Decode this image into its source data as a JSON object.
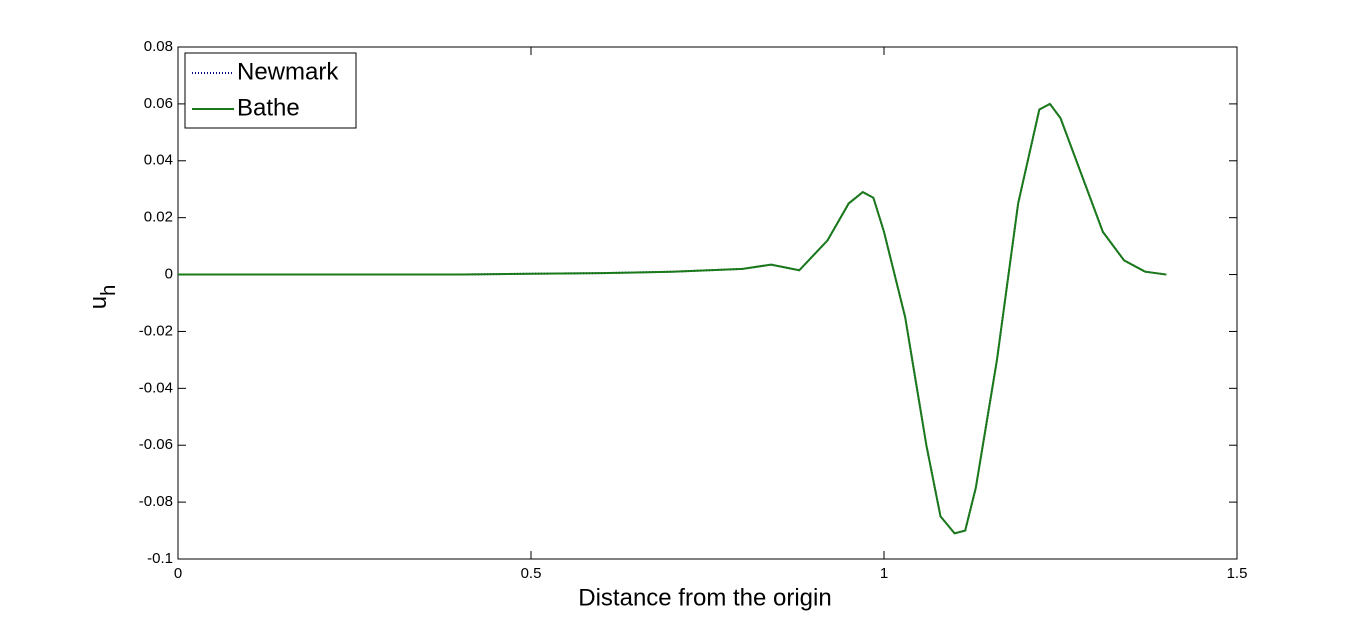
{
  "chart_data": {
    "type": "line",
    "xlabel": "Distance from the origin",
    "ylabel": "u",
    "ylabel_sub": "h",
    "x": [
      0,
      0.1,
      0.2,
      0.3,
      0.4,
      0.5,
      0.6,
      0.7,
      0.8,
      0.84,
      0.88,
      0.92,
      0.95,
      0.97,
      0.985,
      1.0,
      1.03,
      1.06,
      1.08,
      1.1,
      1.115,
      1.13,
      1.16,
      1.19,
      1.22,
      1.235,
      1.25,
      1.28,
      1.31,
      1.34,
      1.37,
      1.4
    ],
    "series": [
      {
        "name": "Newmark",
        "color": "#00008b",
        "dash": "dotted",
        "values": [
          0,
          0,
          0,
          0,
          0,
          0.0003,
          0.0005,
          0.001,
          0.002,
          0.0035,
          0.0015,
          0.012,
          0.025,
          0.029,
          0.027,
          0.015,
          -0.015,
          -0.06,
          -0.085,
          -0.091,
          -0.09,
          -0.075,
          -0.03,
          0.025,
          0.058,
          0.06,
          0.055,
          0.035,
          0.015,
          0.005,
          0.001,
          0
        ]
      },
      {
        "name": "Bathe",
        "color": "#1a7a1a",
        "dash": "solid",
        "values": [
          0,
          0,
          0,
          0,
          0,
          0.0003,
          0.0005,
          0.001,
          0.002,
          0.0035,
          0.0015,
          0.012,
          0.025,
          0.029,
          0.027,
          0.015,
          -0.015,
          -0.06,
          -0.085,
          -0.091,
          -0.09,
          -0.075,
          -0.03,
          0.025,
          0.058,
          0.06,
          0.055,
          0.035,
          0.015,
          0.005,
          0.001,
          0
        ]
      }
    ],
    "xlim": [
      0,
      1.5
    ],
    "xticks": [
      0,
      0.5,
      1,
      1.5
    ],
    "ylim": [
      -0.1,
      0.08
    ],
    "yticks": [
      -0.1,
      -0.08,
      -0.06,
      -0.04,
      -0.02,
      0,
      0.02,
      0.04,
      0.06,
      0.08
    ],
    "legend": "upper-left",
    "grid": false
  }
}
